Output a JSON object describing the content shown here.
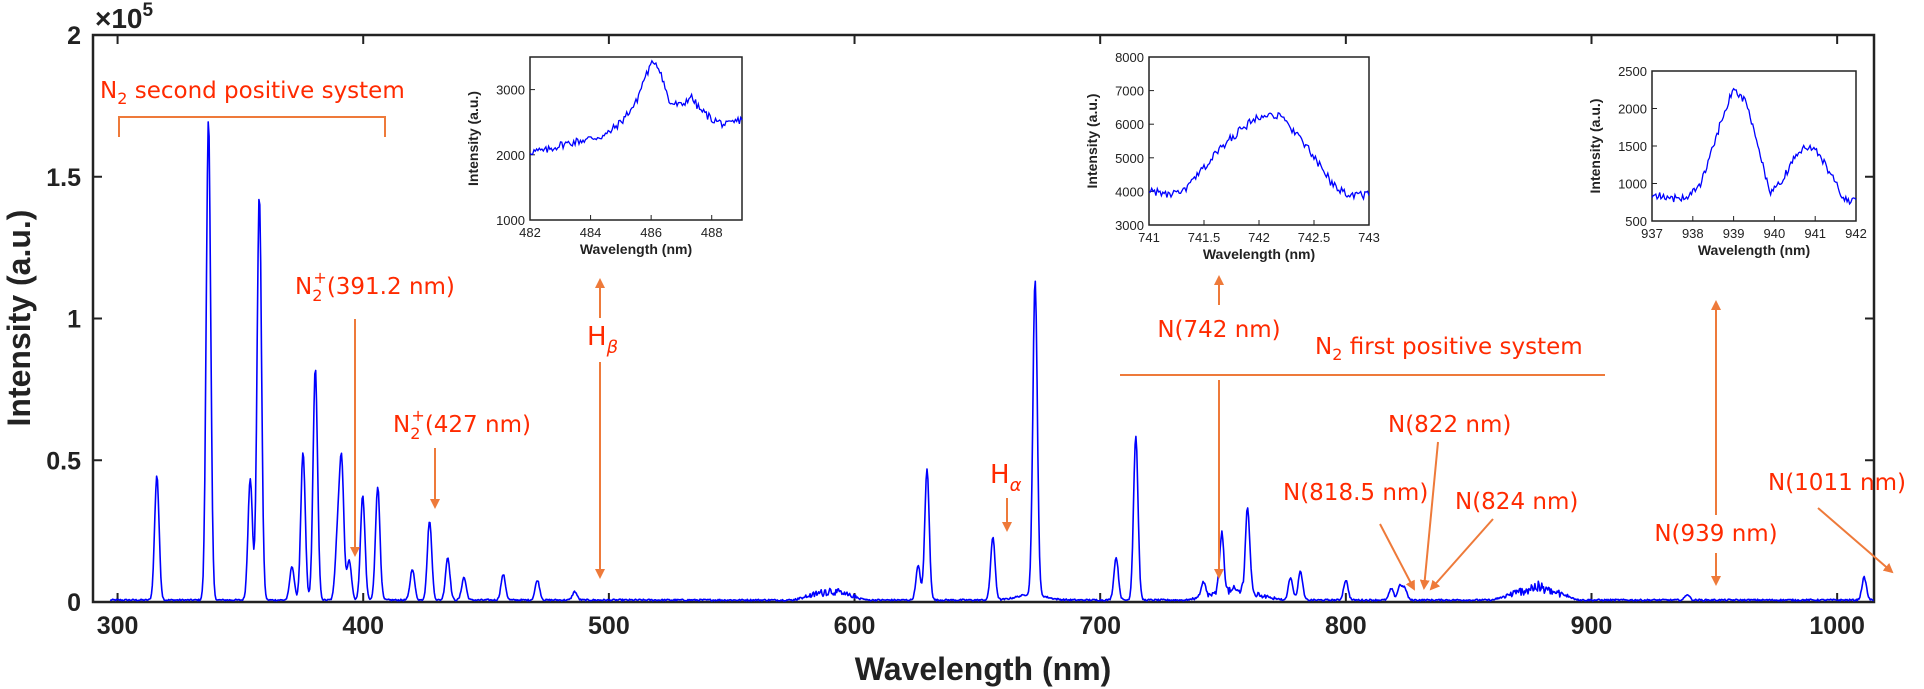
{
  "chart_data": {
    "type": "line",
    "xlabel": "Wavelength (nm)",
    "ylabel": "Intensity (a.u.)",
    "multiplier": "×10",
    "multiplier_exp": "5",
    "xlim": [
      290,
      1015
    ],
    "ylim": [
      0,
      2
    ],
    "xticks": [
      "300",
      "400",
      "500",
      "600",
      "700",
      "800",
      "900",
      "1000"
    ],
    "yticks": [
      "0",
      "0.5",
      "1",
      "1.5",
      "2"
    ],
    "line_color": "#0000ff",
    "annotation_color": "#ff2a00",
    "arrow_color": "#ee7a3a",
    "peaks": [
      {
        "x": 316,
        "y": 0.44
      },
      {
        "x": 337,
        "y": 1.7
      },
      {
        "x": 354,
        "y": 0.43
      },
      {
        "x": 357.7,
        "y": 1.43
      },
      {
        "x": 371,
        "y": 0.12
      },
      {
        "x": 375.5,
        "y": 0.52
      },
      {
        "x": 380.5,
        "y": 0.82
      },
      {
        "x": 389.5,
        "y": 0.21
      },
      {
        "x": 391.2,
        "y": 0.48
      },
      {
        "x": 394.3,
        "y": 0.14
      },
      {
        "x": 399.8,
        "y": 0.37
      },
      {
        "x": 405.9,
        "y": 0.4
      },
      {
        "x": 420,
        "y": 0.11
      },
      {
        "x": 427,
        "y": 0.28
      },
      {
        "x": 434.4,
        "y": 0.15
      },
      {
        "x": 441,
        "y": 0.08
      },
      {
        "x": 457,
        "y": 0.09
      },
      {
        "x": 470.9,
        "y": 0.07
      },
      {
        "x": 486.1,
        "y": 0.03
      },
      {
        "x": 625.9,
        "y": 0.12
      },
      {
        "x": 629.5,
        "y": 0.46
      },
      {
        "x": 656.3,
        "y": 0.22
      },
      {
        "x": 673.5,
        "y": 1.11
      },
      {
        "x": 706.5,
        "y": 0.15
      },
      {
        "x": 714.5,
        "y": 0.58
      },
      {
        "x": 742,
        "y": 0.05
      },
      {
        "x": 749.5,
        "y": 0.21
      },
      {
        "x": 760,
        "y": 0.3
      },
      {
        "x": 777.5,
        "y": 0.08
      },
      {
        "x": 781.5,
        "y": 0.1
      },
      {
        "x": 800,
        "y": 0.07
      },
      {
        "x": 818.5,
        "y": 0.04
      },
      {
        "x": 822,
        "y": 0.05
      },
      {
        "x": 824,
        "y": 0.04
      },
      {
        "x": 939,
        "y": 0.02
      },
      {
        "x": 1011,
        "y": 0.08
      }
    ],
    "bands": [
      {
        "from": 575,
        "to": 605,
        "y": 0.05
      },
      {
        "from": 735,
        "to": 775,
        "y": 0.05
      },
      {
        "from": 860,
        "to": 895,
        "y": 0.07
      }
    ],
    "annotations": {
      "n2_second_base": "N",
      "n2_second_sub": "2",
      "n2_second_rest": " second positive system",
      "n2plus_391_base": "N",
      "n2plus_391_sub": "2",
      "n2plus_391_sup": "+",
      "n2plus_391_rest": "(391.2 nm)",
      "n2plus_427_base": "N",
      "n2plus_427_sub": "2",
      "n2plus_427_sup": "+",
      "n2plus_427_rest": "(427 nm)",
      "hbeta_base": "H",
      "hbeta_sub": "β",
      "halpha_base": "H",
      "halpha_sub": "α",
      "n742": "N(742 nm)",
      "n2_first_base": "N",
      "n2_first_sub": "2",
      "n2_first_rest": " first positive system",
      "n822": "N(822 nm)",
      "n818": "N(818.5 nm)",
      "n824": "N(824 nm)",
      "n939": "N(939 nm)",
      "n1011": "N(1011 nm)"
    },
    "insets": [
      {
        "name": "hbeta",
        "xlim": [
          482,
          489
        ],
        "ylim": [
          1000,
          3500
        ],
        "xticks": [
          "482",
          "484",
          "486",
          "488"
        ],
        "yticks": [
          "1000",
          "2000",
          "3000"
        ],
        "xlabel": "Wavelength (nm)",
        "ylabel": "Intensity (a.u.)",
        "x": [
          482,
          482.5,
          483,
          483.5,
          484,
          484.5,
          485,
          485.5,
          485.8,
          486.1,
          486.3,
          486.6,
          487,
          487.3,
          487.6,
          488,
          488.5,
          489
        ],
        "y": [
          2050,
          2060,
          2150,
          2200,
          2250,
          2300,
          2500,
          2800,
          3200,
          3450,
          3300,
          2800,
          2750,
          2900,
          2700,
          2550,
          2450,
          2550
        ]
      },
      {
        "name": "n742",
        "xlim": [
          741,
          743
        ],
        "ylim": [
          3000,
          8000
        ],
        "xticks": [
          "741",
          "741.5",
          "742",
          "742.5",
          "743"
        ],
        "yticks": [
          "3000",
          "4000",
          "5000",
          "6000",
          "7000",
          "8000"
        ],
        "xlabel": "Wavelength (nm)",
        "ylabel": "Intensity (a.u.)",
        "x": [
          741,
          741.15,
          741.3,
          741.45,
          741.6,
          741.75,
          741.9,
          742.05,
          742.2,
          742.35,
          742.5,
          742.65,
          742.8,
          743
        ],
        "y": [
          4050,
          3900,
          3950,
          4500,
          5100,
          5600,
          6000,
          6350,
          6200,
          5700,
          5000,
          4300,
          3900,
          3900
        ]
      },
      {
        "name": "n939",
        "xlim": [
          937,
          942
        ],
        "ylim": [
          500,
          2500
        ],
        "xticks": [
          "937",
          "938",
          "939",
          "940",
          "941",
          "942"
        ],
        "yticks": [
          "500",
          "1000",
          "1500",
          "2000",
          "2500"
        ],
        "xlabel": "Wavelength (nm)",
        "ylabel": "Intensity (a.u.)",
        "x": [
          937,
          937.5,
          937.9,
          938.2,
          938.5,
          938.8,
          939,
          939.3,
          939.6,
          939.9,
          940.2,
          940.5,
          940.8,
          941.1,
          941.4,
          941.7,
          942
        ],
        "y": [
          850,
          800,
          830,
          1000,
          1500,
          2000,
          2250,
          2100,
          1500,
          850,
          1050,
          1350,
          1500,
          1400,
          1100,
          800,
          750
        ]
      }
    ]
  }
}
